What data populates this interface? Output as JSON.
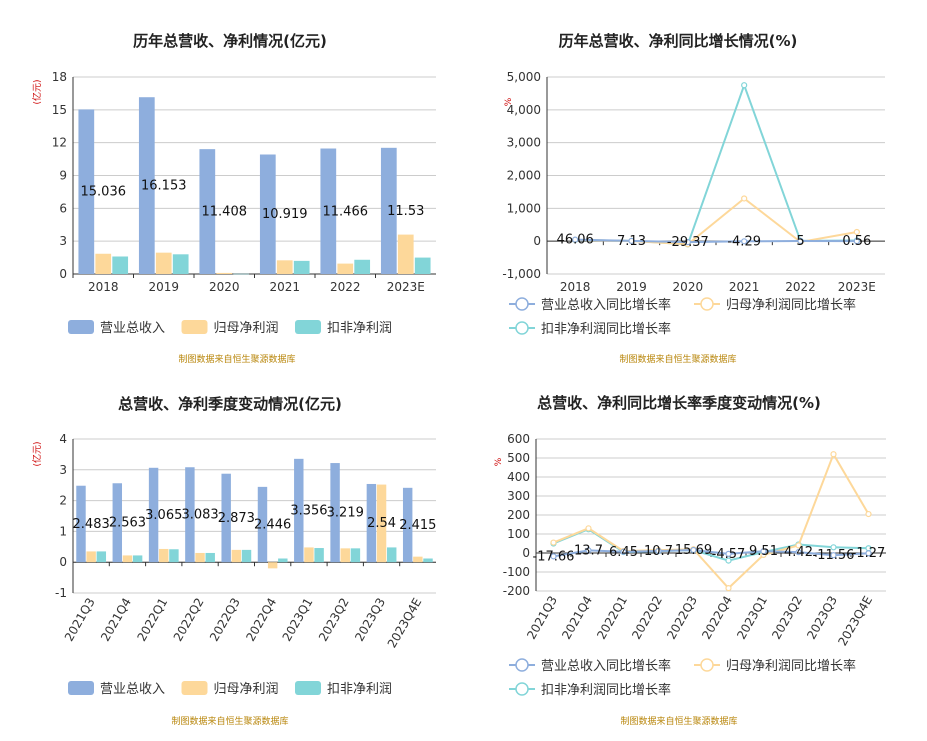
{
  "colors": {
    "revenue": "#8eaedd",
    "net_profit": "#fdd89a",
    "deducted_profit": "#82d5d8",
    "title": "#222222",
    "axis_unit": "#cc0000",
    "source": "#b8860b",
    "grid": "#cccccc",
    "axis": "#333333"
  },
  "chart_data": [
    {
      "type": "bar",
      "title": "历年总营收、净利情况(亿元)",
      "ylabel": "(亿元)",
      "ylim": [
        0,
        18
      ],
      "yticks": [
        0,
        3,
        6,
        9,
        12,
        15,
        18
      ],
      "categories": [
        "2018",
        "2019",
        "2020",
        "2021",
        "2022",
        "2023E"
      ],
      "series": [
        {
          "name": "营业总收入",
          "values": [
            15.036,
            16.153,
            11.408,
            10.919,
            11.466,
            11.53
          ],
          "labels": [
            "15.036",
            "16.153",
            "11.408",
            "10.919",
            "11.466",
            "11.53"
          ]
        },
        {
          "name": "归母净利润",
          "values": [
            1.85,
            1.95,
            0.1,
            1.25,
            0.95,
            3.6
          ]
        },
        {
          "name": "扣非净利润",
          "values": [
            1.6,
            1.8,
            0.02,
            1.2,
            1.3,
            1.5
          ]
        }
      ],
      "source": "制图数据来自恒生聚源数据库"
    },
    {
      "type": "line",
      "title": "历年总营收、净利同比增长情况(%)",
      "ylabel": "%",
      "ylim": [
        -1000,
        5000
      ],
      "yticks": [
        -1000,
        0,
        1000,
        2000,
        3000,
        4000,
        5000
      ],
      "ytick_labels": [
        "-1,000",
        "0",
        "1,000",
        "2,000",
        "3,000",
        "4,000",
        "5,000"
      ],
      "categories": [
        "2018",
        "2019",
        "2020",
        "2021",
        "2022",
        "2023E"
      ],
      "series": [
        {
          "name": "营业总收入同比增长率",
          "values": [
            46.06,
            7.13,
            -29.37,
            -4.29,
            5,
            0.56
          ],
          "labels": [
            "46.06",
            "7.13",
            "-29.37",
            "-4.29",
            "5",
            "0.56"
          ]
        },
        {
          "name": "归母净利润同比增长率",
          "values": [
            40,
            5,
            -95,
            1300,
            -25,
            280
          ]
        },
        {
          "name": "扣非净利润同比增长率",
          "values": [
            35,
            10,
            -98,
            4750,
            8,
            20
          ]
        }
      ],
      "source": "制图数据来自恒生聚源数据库"
    },
    {
      "type": "bar",
      "title": "总营收、净利季度变动情况(亿元)",
      "ylabel": "(亿元)",
      "ylim": [
        -1,
        4
      ],
      "yticks": [
        -1,
        0,
        1,
        2,
        3,
        4
      ],
      "categories": [
        "2021Q3",
        "2021Q4",
        "2022Q1",
        "2022Q2",
        "2022Q3",
        "2022Q4",
        "2023Q1",
        "2023Q2",
        "2023Q3",
        "2023Q4E"
      ],
      "series": [
        {
          "name": "营业总收入",
          "values": [
            2.483,
            2.563,
            3.065,
            3.083,
            2.873,
            2.446,
            3.356,
            3.219,
            2.54,
            2.415
          ],
          "labels": [
            "2.483",
            "2.563",
            "3.065",
            "3.083",
            "2.873",
            "2.446",
            "3.356",
            "3.219",
            "2.54",
            "2.415"
          ]
        },
        {
          "name": "归母净利润",
          "values": [
            0.35,
            0.22,
            0.43,
            0.3,
            0.4,
            -0.2,
            0.48,
            0.45,
            2.52,
            0.18
          ]
        },
        {
          "name": "扣非净利润",
          "values": [
            0.35,
            0.22,
            0.42,
            0.3,
            0.4,
            0.12,
            0.46,
            0.45,
            0.48,
            0.12
          ]
        }
      ],
      "source": "制图数据来自恒生聚源数据库"
    },
    {
      "type": "line",
      "title": "总营收、净利同比增长率季度变动情况(%)",
      "ylabel": "%",
      "ylim": [
        -200,
        600
      ],
      "yticks": [
        -200,
        -100,
        0,
        100,
        200,
        300,
        400,
        500,
        600
      ],
      "categories": [
        "2021Q3",
        "2021Q4",
        "2022Q1",
        "2022Q2",
        "2022Q3",
        "2022Q4",
        "2023Q1",
        "2023Q2",
        "2023Q3",
        "2023Q4E"
      ],
      "series": [
        {
          "name": "营业总收入同比增长率",
          "values": [
            -17.66,
            13.7,
            6.45,
            10.7,
            15.69,
            -4.57,
            9.51,
            4.42,
            -11.56,
            -1.27
          ],
          "labels": [
            "-17.66",
            "13.7",
            "6.45",
            "10.7",
            "15.69",
            "-4.57",
            "9.51",
            "4.42",
            "-11.56",
            "-1.27"
          ]
        },
        {
          "name": "归母净利润同比增长率",
          "values": [
            55,
            130,
            10,
            15,
            20,
            -185,
            -10,
            40,
            520,
            205
          ]
        },
        {
          "name": "扣非净利润同比增长率",
          "values": [
            50,
            125,
            5,
            10,
            15,
            -40,
            5,
            45,
            30,
            25
          ]
        }
      ],
      "source": "制图数据来自恒生聚源数据库"
    }
  ]
}
